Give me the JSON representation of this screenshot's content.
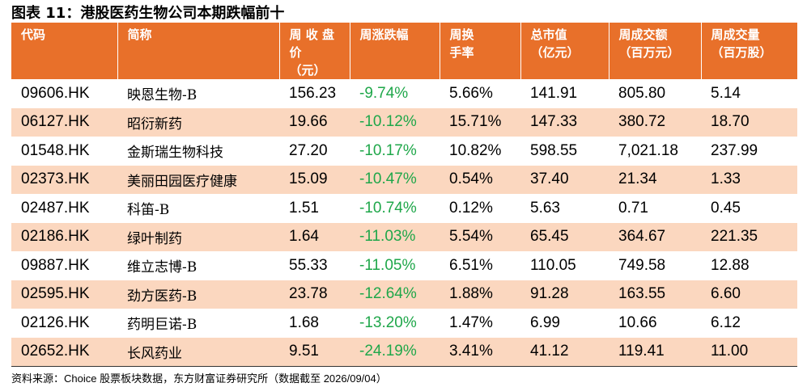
{
  "title": "图表 11：港股医药生物公司本期跌幅前十",
  "table": {
    "header": [
      [
        "代码"
      ],
      [
        "简称"
      ],
      [
        "周 收 盘",
        "价",
        "（元）"
      ],
      [
        "周涨跌幅"
      ],
      [
        "周换",
        "手率"
      ],
      [
        "总市值",
        "（亿元）"
      ],
      [
        "周成交额",
        "（百万元）"
      ],
      [
        "周成交量",
        "（百万股）"
      ]
    ],
    "rows": [
      [
        "09606.HK",
        "映恩生物-B",
        "156.23",
        "-9.74%",
        "5.66%",
        "141.91",
        "805.80",
        "5.14"
      ],
      [
        "06127.HK",
        "昭衍新药",
        "19.66",
        "-10.12%",
        "15.71%",
        "147.33",
        "380.72",
        "18.70"
      ],
      [
        "01548.HK",
        "金斯瑞生物科技",
        "27.20",
        "-10.17%",
        "10.82%",
        "598.55",
        "7,021.18",
        "237.99"
      ],
      [
        "02373.HK",
        "美丽田园医疗健康",
        "15.09",
        "-10.47%",
        "0.54%",
        "37.40",
        "21.34",
        "1.33"
      ],
      [
        "02487.HK",
        "科笛-B",
        "1.51",
        "-10.74%",
        "0.12%",
        "5.63",
        "0.71",
        "0.45"
      ],
      [
        "02186.HK",
        "绿叶制药",
        "1.64",
        "-11.03%",
        "5.54%",
        "65.45",
        "364.67",
        "221.35"
      ],
      [
        "09887.HK",
        "维立志博-B",
        "55.33",
        "-11.05%",
        "6.51%",
        "110.05",
        "749.58",
        "12.88"
      ],
      [
        "02595.HK",
        "劲方医药-B",
        "23.78",
        "-12.64%",
        "1.88%",
        "91.28",
        "163.55",
        "6.60"
      ],
      [
        "02126.HK",
        "药明巨诺-B",
        "1.68",
        "-13.20%",
        "1.47%",
        "6.99",
        "10.66",
        "6.12"
      ],
      [
        "02652.HK",
        "长风药业",
        "9.51",
        "-24.19%",
        "3.41%",
        "41.12",
        "119.41",
        "11.00"
      ]
    ]
  },
  "source": "资料来源：Choice 股票板块数据，东方财富证券研究所（数据截至 2026/09/04）"
}
